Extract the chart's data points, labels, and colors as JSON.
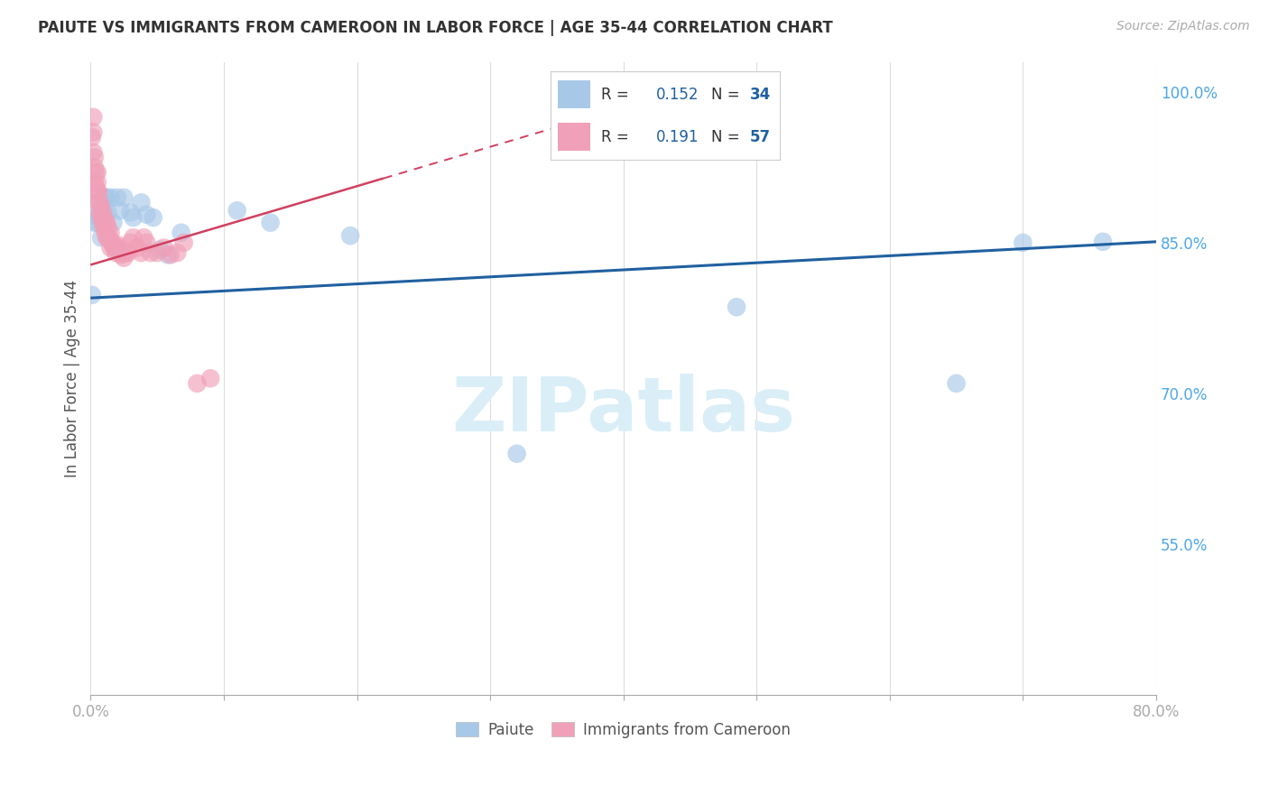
{
  "title": "PAIUTE VS IMMIGRANTS FROM CAMEROON IN LABOR FORCE | AGE 35-44 CORRELATION CHART",
  "source": "Source: ZipAtlas.com",
  "ylabel": "In Labor Force | Age 35-44",
  "watermark": "ZIPatlas",
  "legend_label1": "Paiute",
  "legend_label2": "Immigrants from Cameroon",
  "r1": 0.152,
  "n1": 34,
  "r2": 0.191,
  "n2": 57,
  "xlim": [
    0.0,
    0.8
  ],
  "ylim": [
    0.4,
    1.03
  ],
  "yticks": [
    0.55,
    0.7,
    0.85,
    1.0
  ],
  "ytick_labels": [
    "55.0%",
    "70.0%",
    "85.0%",
    "100.0%"
  ],
  "xticks": [
    0.0,
    0.1,
    0.2,
    0.3,
    0.4,
    0.5,
    0.6,
    0.7,
    0.8
  ],
  "xtick_labels": [
    "0.0%",
    "",
    "",
    "",
    "",
    "",
    "",
    "",
    "80.0%"
  ],
  "color_blue": "#a8c8e8",
  "color_pink": "#f0a0b8",
  "color_line_blue": "#2060a0",
  "color_line_pink": "#d04060",
  "color_axis": "#aaaaaa",
  "color_grid": "#dddddd",
  "color_title": "#333333",
  "color_legend_r": "#2060a0",
  "color_legend_n": "#2060a0",
  "color_source": "#aaaaaa",
  "color_watermark": "#daeef8",
  "color_right_labels": "#4da6e8",
  "blue_line_x0": 0.0,
  "blue_line_x1": 0.8,
  "blue_line_y0": 0.795,
  "blue_line_y1": 0.851,
  "pink_line_x0": 0.0,
  "pink_line_x1": 0.35,
  "pink_line_y0": 0.828,
  "pink_line_y1": 0.965,
  "paiute_x": [
    0.001,
    0.003,
    0.004,
    0.005,
    0.006,
    0.007,
    0.008,
    0.009,
    0.01,
    0.011,
    0.012,
    0.013,
    0.015,
    0.017,
    0.018,
    0.02,
    0.022,
    0.025,
    0.03,
    0.032,
    0.038,
    0.042,
    0.047,
    0.052,
    0.058,
    0.068,
    0.11,
    0.135,
    0.195,
    0.32,
    0.485,
    0.65,
    0.7,
    0.76
  ],
  "paiute_y": [
    0.798,
    0.87,
    0.89,
    0.87,
    0.875,
    0.88,
    0.855,
    0.89,
    0.88,
    0.895,
    0.895,
    0.88,
    0.895,
    0.87,
    0.845,
    0.895,
    0.882,
    0.895,
    0.88,
    0.875,
    0.89,
    0.878,
    0.875,
    0.843,
    0.838,
    0.86,
    0.882,
    0.87,
    0.857,
    0.64,
    0.786,
    0.71,
    0.85,
    0.851
  ],
  "cameroon_x": [
    0.001,
    0.002,
    0.002,
    0.002,
    0.003,
    0.003,
    0.003,
    0.004,
    0.004,
    0.005,
    0.005,
    0.005,
    0.006,
    0.006,
    0.007,
    0.007,
    0.008,
    0.008,
    0.009,
    0.009,
    0.01,
    0.01,
    0.011,
    0.011,
    0.012,
    0.012,
    0.013,
    0.013,
    0.014,
    0.015,
    0.015,
    0.016,
    0.017,
    0.018,
    0.019,
    0.02,
    0.021,
    0.022,
    0.023,
    0.024,
    0.025,
    0.026,
    0.028,
    0.03,
    0.032,
    0.035,
    0.038,
    0.04,
    0.042,
    0.045,
    0.05,
    0.055,
    0.06,
    0.065,
    0.07,
    0.08,
    0.09
  ],
  "cameroon_y": [
    0.955,
    0.975,
    0.96,
    0.94,
    0.935,
    0.925,
    0.91,
    0.92,
    0.905,
    0.92,
    0.91,
    0.9,
    0.9,
    0.89,
    0.89,
    0.88,
    0.885,
    0.875,
    0.88,
    0.87,
    0.875,
    0.865,
    0.87,
    0.86,
    0.87,
    0.855,
    0.865,
    0.855,
    0.855,
    0.86,
    0.845,
    0.85,
    0.848,
    0.845,
    0.84,
    0.848,
    0.843,
    0.845,
    0.838,
    0.84,
    0.835,
    0.84,
    0.84,
    0.85,
    0.855,
    0.845,
    0.84,
    0.855,
    0.85,
    0.84,
    0.84,
    0.845,
    0.838,
    0.84,
    0.85,
    0.71,
    0.715
  ]
}
